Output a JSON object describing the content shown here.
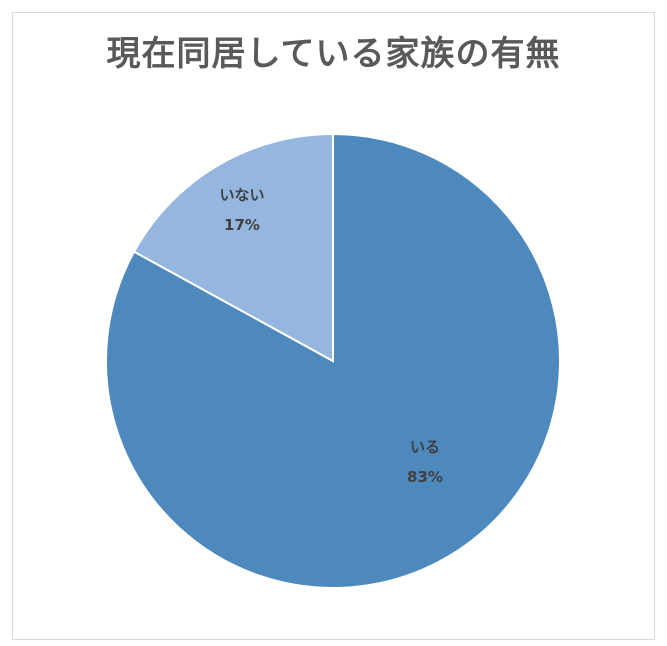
{
  "chart_data": {
    "type": "pie",
    "title": "現在同居している家族の有無",
    "slices": [
      {
        "label": "いる",
        "value": 83,
        "display": "83%",
        "color": "#4e89be"
      },
      {
        "label": "いない",
        "value": 17,
        "display": "17%",
        "color": "#95b7df"
      }
    ],
    "start_angle": "top",
    "direction": "clockwise",
    "slice_border_color": "#ffffff"
  }
}
